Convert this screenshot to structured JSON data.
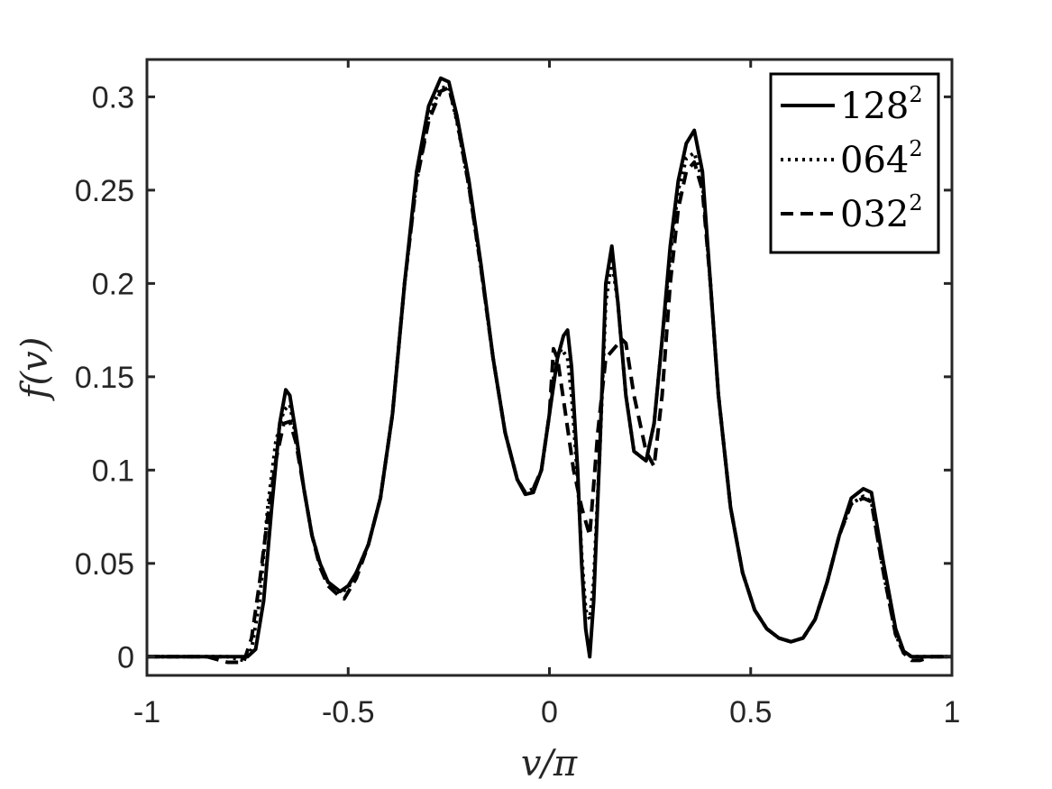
{
  "chart_data": {
    "type": "line",
    "title": "",
    "xlabel": "v/π",
    "ylabel": "f(v)",
    "xlim": [
      -1,
      1
    ],
    "ylim": [
      -0.01,
      0.32
    ],
    "xticks": [
      -1,
      -0.5,
      0,
      0.5,
      1
    ],
    "xtick_labels": [
      "-1",
      "-0.5",
      "0",
      "0.5",
      "1"
    ],
    "yticks": [
      0,
      0.05,
      0.1,
      0.15,
      0.2,
      0.25,
      0.3
    ],
    "ytick_labels": [
      "0",
      "0.05",
      "0.1",
      "0.15",
      "0.2",
      "0.25",
      "0.3"
    ],
    "grid": false,
    "legend_position": "top-right",
    "series": [
      {
        "name": "128",
        "name_superscript": "2",
        "style": "solid",
        "color": "#000000",
        "x": [
          -1.0,
          -0.9,
          -0.86,
          -0.8,
          -0.75,
          -0.73,
          -0.71,
          -0.69,
          -0.67,
          -0.655,
          -0.645,
          -0.63,
          -0.61,
          -0.59,
          -0.57,
          -0.55,
          -0.52,
          -0.5,
          -0.48,
          -0.45,
          -0.42,
          -0.39,
          -0.36,
          -0.33,
          -0.3,
          -0.27,
          -0.25,
          -0.23,
          -0.2,
          -0.17,
          -0.14,
          -0.11,
          -0.08,
          -0.06,
          -0.04,
          -0.02,
          0.0,
          0.02,
          0.035,
          0.045,
          0.055,
          0.07,
          0.08,
          0.09,
          0.1,
          0.11,
          0.125,
          0.14,
          0.155,
          0.17,
          0.19,
          0.21,
          0.24,
          0.26,
          0.28,
          0.3,
          0.32,
          0.34,
          0.36,
          0.38,
          0.4,
          0.42,
          0.45,
          0.48,
          0.51,
          0.54,
          0.57,
          0.6,
          0.63,
          0.66,
          0.69,
          0.72,
          0.75,
          0.78,
          0.8,
          0.81,
          0.83,
          0.86,
          0.88,
          0.9,
          0.92,
          0.95,
          1.0
        ],
        "y": [
          0.0,
          0.0,
          0.0,
          0.0,
          0.0,
          0.004,
          0.03,
          0.08,
          0.125,
          0.143,
          0.14,
          0.12,
          0.09,
          0.065,
          0.05,
          0.04,
          0.035,
          0.038,
          0.045,
          0.06,
          0.085,
          0.13,
          0.2,
          0.26,
          0.295,
          0.31,
          0.308,
          0.29,
          0.255,
          0.21,
          0.16,
          0.12,
          0.095,
          0.087,
          0.088,
          0.1,
          0.13,
          0.16,
          0.172,
          0.175,
          0.155,
          0.1,
          0.05,
          0.015,
          0.0,
          0.03,
          0.11,
          0.2,
          0.22,
          0.19,
          0.14,
          0.11,
          0.105,
          0.125,
          0.17,
          0.22,
          0.255,
          0.275,
          0.282,
          0.26,
          0.2,
          0.14,
          0.08,
          0.045,
          0.025,
          0.015,
          0.01,
          0.008,
          0.01,
          0.02,
          0.04,
          0.065,
          0.085,
          0.09,
          0.088,
          0.075,
          0.05,
          0.015,
          0.003,
          0.0,
          0.0,
          0.0,
          0.0
        ]
      },
      {
        "name": "064",
        "name_superscript": "2",
        "style": "dotted",
        "color": "#000000",
        "x": [
          -1.0,
          -0.9,
          -0.85,
          -0.8,
          -0.76,
          -0.74,
          -0.72,
          -0.7,
          -0.68,
          -0.66,
          -0.645,
          -0.63,
          -0.61,
          -0.59,
          -0.57,
          -0.55,
          -0.52,
          -0.5,
          -0.48,
          -0.45,
          -0.42,
          -0.39,
          -0.36,
          -0.33,
          -0.3,
          -0.27,
          -0.25,
          -0.23,
          -0.2,
          -0.17,
          -0.14,
          -0.11,
          -0.08,
          -0.06,
          -0.04,
          -0.02,
          0.0,
          0.015,
          0.03,
          0.045,
          0.055,
          0.07,
          0.08,
          0.09,
          0.1,
          0.11,
          0.125,
          0.14,
          0.155,
          0.17,
          0.19,
          0.21,
          0.24,
          0.26,
          0.28,
          0.3,
          0.32,
          0.34,
          0.36,
          0.38,
          0.4,
          0.42,
          0.45,
          0.48,
          0.51,
          0.54,
          0.57,
          0.6,
          0.63,
          0.66,
          0.69,
          0.72,
          0.75,
          0.78,
          0.8,
          0.81,
          0.83,
          0.86,
          0.88,
          0.9,
          0.92,
          0.95,
          1.0
        ],
        "y": [
          0.0,
          0.0,
          0.0,
          0.0,
          -0.002,
          0.004,
          0.03,
          0.08,
          0.115,
          0.132,
          0.135,
          0.118,
          0.09,
          0.065,
          0.05,
          0.04,
          0.034,
          0.037,
          0.045,
          0.06,
          0.085,
          0.13,
          0.2,
          0.255,
          0.29,
          0.305,
          0.305,
          0.287,
          0.252,
          0.208,
          0.16,
          0.12,
          0.095,
          0.088,
          0.09,
          0.1,
          0.13,
          0.158,
          0.165,
          0.16,
          0.14,
          0.095,
          0.055,
          0.025,
          0.02,
          0.04,
          0.11,
          0.19,
          0.212,
          0.19,
          0.14,
          0.11,
          0.105,
          0.125,
          0.17,
          0.215,
          0.25,
          0.267,
          0.27,
          0.255,
          0.2,
          0.14,
          0.08,
          0.045,
          0.025,
          0.015,
          0.01,
          0.008,
          0.01,
          0.02,
          0.04,
          0.065,
          0.082,
          0.086,
          0.083,
          0.07,
          0.045,
          0.012,
          0.002,
          0.0,
          0.0,
          0.0,
          0.0
        ]
      },
      {
        "name": "032",
        "name_superscript": "2",
        "style": "dashed",
        "color": "#000000",
        "x": [
          -1.0,
          -0.9,
          -0.85,
          -0.8,
          -0.76,
          -0.74,
          -0.72,
          -0.7,
          -0.68,
          -0.66,
          -0.645,
          -0.63,
          -0.61,
          -0.59,
          -0.57,
          -0.55,
          -0.52,
          -0.51,
          -0.48,
          -0.45,
          -0.42,
          -0.39,
          -0.36,
          -0.33,
          -0.3,
          -0.27,
          -0.25,
          -0.23,
          -0.2,
          -0.17,
          -0.14,
          -0.11,
          -0.08,
          -0.06,
          -0.04,
          -0.02,
          0.0,
          0.01,
          0.02,
          0.04,
          0.06,
          0.08,
          0.1,
          0.12,
          0.14,
          0.16,
          0.18,
          0.19,
          0.21,
          0.24,
          0.26,
          0.28,
          0.3,
          0.32,
          0.34,
          0.36,
          0.38,
          0.4,
          0.42,
          0.45,
          0.48,
          0.51,
          0.54,
          0.57,
          0.6,
          0.63,
          0.66,
          0.69,
          0.72,
          0.75,
          0.78,
          0.8,
          0.81,
          0.83,
          0.86,
          0.88,
          0.9,
          0.92,
          0.95,
          1.0
        ],
        "y": [
          0.0,
          0.0,
          0.0,
          -0.003,
          -0.003,
          0.01,
          0.04,
          0.075,
          0.105,
          0.125,
          0.126,
          0.115,
          0.09,
          0.065,
          0.048,
          0.038,
          0.032,
          0.031,
          0.042,
          0.06,
          0.085,
          0.13,
          0.2,
          0.255,
          0.287,
          0.303,
          0.305,
          0.288,
          0.252,
          0.208,
          0.16,
          0.12,
          0.095,
          0.088,
          0.09,
          0.1,
          0.13,
          0.165,
          0.16,
          0.13,
          0.1,
          0.08,
          0.065,
          0.12,
          0.16,
          0.165,
          0.17,
          0.168,
          0.14,
          0.11,
          0.102,
          0.14,
          0.2,
          0.24,
          0.26,
          0.265,
          0.25,
          0.2,
          0.14,
          0.08,
          0.045,
          0.025,
          0.015,
          0.01,
          0.008,
          0.01,
          0.02,
          0.04,
          0.065,
          0.082,
          0.085,
          0.083,
          0.07,
          0.045,
          0.012,
          0.002,
          -0.002,
          -0.002,
          0.0,
          0.0
        ]
      }
    ]
  }
}
